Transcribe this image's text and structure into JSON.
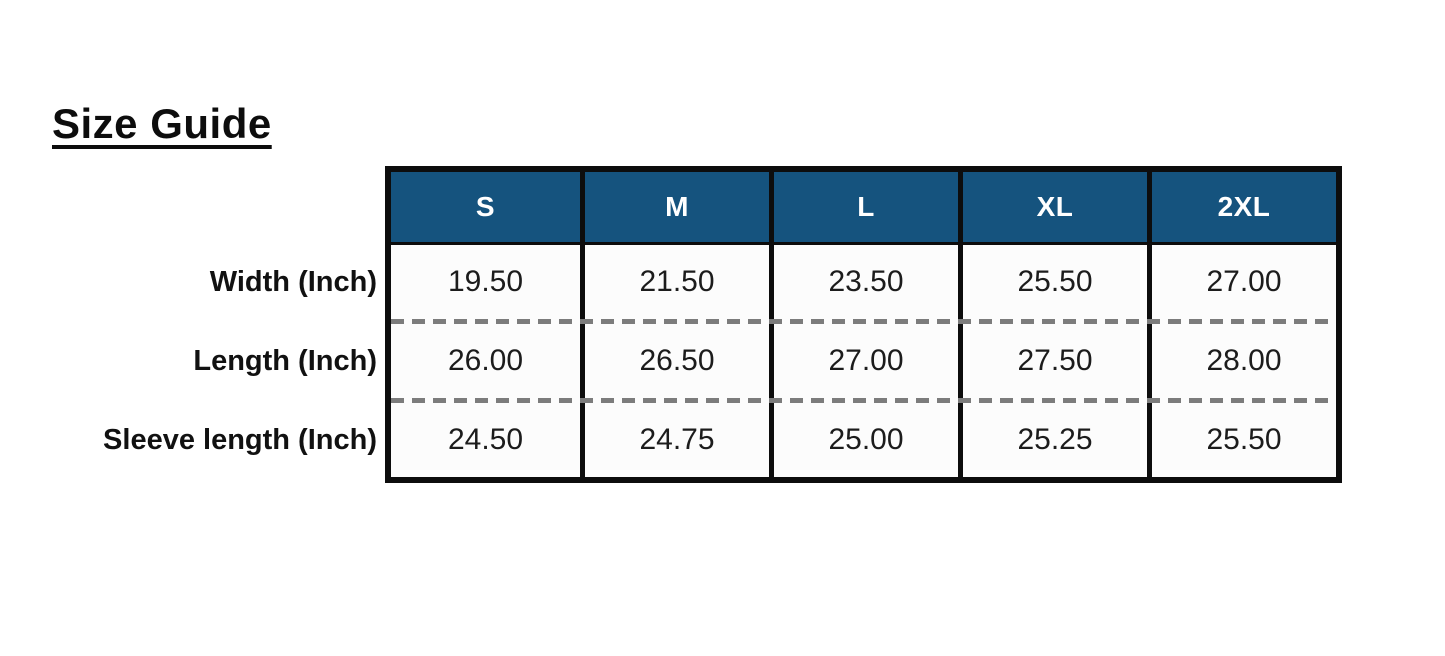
{
  "page": {
    "title": "Size Guide"
  },
  "size_table": {
    "columns": [
      "S",
      "M",
      "L",
      "XL",
      "2XL"
    ],
    "rows": [
      {
        "label": "Width (Inch)",
        "values": [
          "19.50",
          "21.50",
          "23.50",
          "25.50",
          "27.00"
        ]
      },
      {
        "label": "Length (Inch)",
        "values": [
          "26.00",
          "26.50",
          "27.00",
          "27.50",
          "28.00"
        ]
      },
      {
        "label": "Sleeve length (Inch)",
        "values": [
          "24.50",
          "24.75",
          "25.00",
          "25.25",
          "25.50"
        ]
      }
    ],
    "colors": {
      "header_bg": "#15537e",
      "header_text": "#ffffff",
      "border": "#0d0d0d",
      "dashed_divider": "#7c7c7c",
      "cell_bg": "#fcfcfc"
    }
  },
  "chart_data": {
    "type": "table",
    "title": "Size Guide",
    "columns": [
      "S",
      "M",
      "L",
      "XL",
      "2XL"
    ],
    "row_labels": [
      "Width (Inch)",
      "Length (Inch)",
      "Sleeve length (Inch)"
    ],
    "rows": [
      [
        19.5,
        21.5,
        23.5,
        25.5,
        27.0
      ],
      [
        26.0,
        26.5,
        27.0,
        27.5,
        28.0
      ],
      [
        24.5,
        24.75,
        25.0,
        25.25,
        25.5
      ]
    ],
    "units": "Inch",
    "layout": {
      "header_position": "top",
      "row_labels_position": "left-outside",
      "grid": "solid-vertical-dashed-horizontal"
    }
  }
}
